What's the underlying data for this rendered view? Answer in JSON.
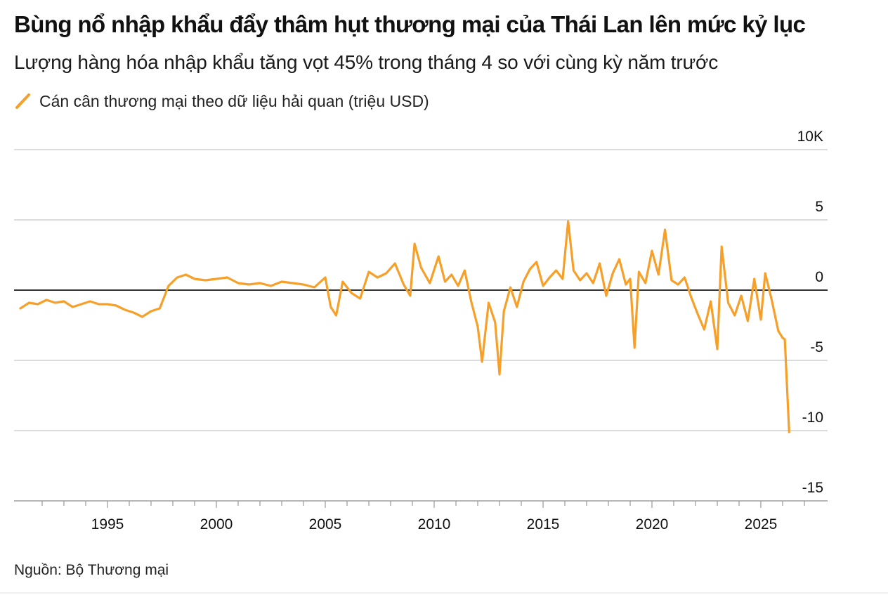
{
  "header": {
    "title": "Bùng nổ nhập khẩu đẩy thâm hụt thương mại của Thái Lan lên mức kỷ lục",
    "subtitle": "Lượng hàng hóa nhập khẩu tăng vọt 45% trong tháng 4 so với cùng kỳ năm trước"
  },
  "footer": {
    "source": "Nguồn: Bộ Thương mại"
  },
  "colors": {
    "line": "#f6a02a",
    "zero_line": "#333333",
    "grid": "#d0d0d0",
    "axis": "#9a9a9a",
    "text": "#111111"
  },
  "chart_data": {
    "type": "line",
    "title": "Bùng nổ nhập khẩu đẩy thâm hụt thương mại của Thái Lan lên mức kỷ lục",
    "subtitle": "Lượng hàng hóa nhập khẩu tăng vọt 45% trong tháng 4 so với cùng kỳ năm trước",
    "xlabel": "",
    "ylabel": "",
    "xlim": [
      1990.5,
      2027.5
    ],
    "ylim": [
      -15,
      10
    ],
    "x_ticks": [
      1995,
      2000,
      2005,
      2010,
      2015,
      2020,
      2025
    ],
    "x_tick_labels": [
      "1995",
      "2000",
      "2005",
      "2010",
      "2015",
      "2020",
      "2025"
    ],
    "y_ticks": [
      10,
      5,
      0,
      -5,
      -10,
      -15
    ],
    "y_tick_labels": [
      "10K",
      "5",
      "0",
      "-5",
      "-10",
      "-15"
    ],
    "grid": true,
    "legend_position": "top-left",
    "series": [
      {
        "name": "Cán cân thương mại theo dữ liệu hải quan (triệu USD)",
        "x": [
          1991.0,
          1991.4,
          1991.8,
          1992.2,
          1992.6,
          1993.0,
          1993.4,
          1993.8,
          1994.2,
          1994.6,
          1995.0,
          1995.4,
          1995.8,
          1996.2,
          1996.6,
          1997.0,
          1997.4,
          1997.8,
          1998.2,
          1998.6,
          1999.0,
          1999.5,
          2000.0,
          2000.5,
          2001.0,
          2001.5,
          2002.0,
          2002.5,
          2003.0,
          2003.5,
          2004.0,
          2004.5,
          2005.0,
          2005.25,
          2005.5,
          2005.8,
          2006.2,
          2006.6,
          2007.0,
          2007.4,
          2007.8,
          2008.2,
          2008.6,
          2008.9,
          2009.1,
          2009.4,
          2009.8,
          2010.2,
          2010.5,
          2010.8,
          2011.1,
          2011.4,
          2011.7,
          2012.0,
          2012.2,
          2012.5,
          2012.8,
          2013.0,
          2013.2,
          2013.5,
          2013.8,
          2014.1,
          2014.4,
          2014.7,
          2015.0,
          2015.3,
          2015.6,
          2015.9,
          2016.15,
          2016.4,
          2016.7,
          2017.0,
          2017.3,
          2017.6,
          2017.9,
          2018.2,
          2018.5,
          2018.8,
          2019.0,
          2019.2,
          2019.4,
          2019.7,
          2020.0,
          2020.3,
          2020.6,
          2020.9,
          2021.2,
          2021.5,
          2021.8,
          2022.1,
          2022.4,
          2022.7,
          2023.0,
          2023.2,
          2023.5,
          2023.8,
          2024.1,
          2024.4,
          2024.7,
          2025.0,
          2025.2,
          2025.5,
          2025.8,
          2026.0,
          2026.1,
          2026.3
        ],
        "values": [
          -1.3,
          -0.9,
          -1.0,
          -0.7,
          -0.9,
          -0.8,
          -1.2,
          -1.0,
          -0.8,
          -1.0,
          -1.0,
          -1.1,
          -1.4,
          -1.6,
          -1.9,
          -1.5,
          -1.3,
          0.3,
          0.9,
          1.1,
          0.8,
          0.7,
          0.8,
          0.9,
          0.5,
          0.4,
          0.5,
          0.3,
          0.6,
          0.5,
          0.4,
          0.2,
          0.9,
          -1.2,
          -1.8,
          0.6,
          -0.2,
          -0.6,
          1.3,
          0.9,
          1.2,
          1.9,
          0.4,
          -0.4,
          3.3,
          1.6,
          0.5,
          2.4,
          0.6,
          1.1,
          0.3,
          1.4,
          -0.8,
          -2.6,
          -5.1,
          -0.9,
          -2.3,
          -6.0,
          -1.5,
          0.2,
          -1.2,
          0.6,
          1.5,
          2.0,
          0.3,
          0.9,
          1.4,
          0.8,
          4.9,
          1.4,
          0.7,
          1.2,
          0.5,
          1.9,
          -0.4,
          1.2,
          2.2,
          0.4,
          0.8,
          -4.1,
          1.3,
          0.5,
          2.8,
          1.1,
          4.3,
          0.7,
          0.4,
          0.9,
          -0.5,
          -1.7,
          -2.8,
          -0.8,
          -4.2,
          3.1,
          -0.9,
          -1.8,
          -0.4,
          -2.2,
          0.8,
          -2.1,
          1.2,
          -0.7,
          -2.9,
          -3.4,
          -3.5,
          -10.1
        ]
      }
    ]
  }
}
